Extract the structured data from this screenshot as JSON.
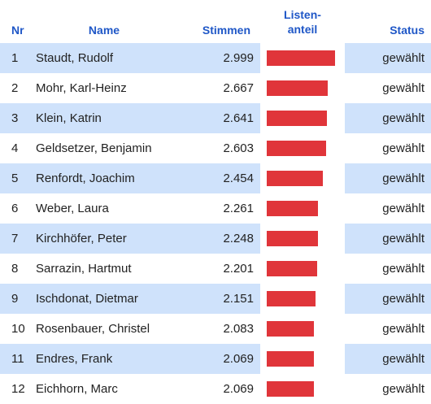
{
  "header": {
    "nr": "Nr",
    "name": "Name",
    "votes": "Stimmen",
    "share_line1": "Listen-",
    "share_line2": "anteil",
    "status": "Status"
  },
  "colors": {
    "header_text": "#1f57c7",
    "row_stripe": "#cfe2fb",
    "bar": "#e0353a"
  },
  "rows": [
    {
      "nr": "1",
      "name": "Staudt, Rudolf",
      "votes": "2.999",
      "share": 2999,
      "status": "gewählt"
    },
    {
      "nr": "2",
      "name": "Mohr, Karl-Heinz",
      "votes": "2.667",
      "share": 2667,
      "status": "gewählt"
    },
    {
      "nr": "3",
      "name": "Klein, Katrin",
      "votes": "2.641",
      "share": 2641,
      "status": "gewählt"
    },
    {
      "nr": "4",
      "name": "Geldsetzer, Benjamin",
      "votes": "2.603",
      "share": 2603,
      "status": "gewählt"
    },
    {
      "nr": "5",
      "name": "Renfordt, Joachim",
      "votes": "2.454",
      "share": 2454,
      "status": "gewählt"
    },
    {
      "nr": "6",
      "name": "Weber, Laura",
      "votes": "2.261",
      "share": 2261,
      "status": "gewählt"
    },
    {
      "nr": "7",
      "name": "Kirchhöfer, Peter",
      "votes": "2.248",
      "share": 2248,
      "status": "gewählt"
    },
    {
      "nr": "8",
      "name": "Sarrazin, Hartmut",
      "votes": "2.201",
      "share": 2201,
      "status": "gewählt"
    },
    {
      "nr": "9",
      "name": "Ischdonat, Dietmar",
      "votes": "2.151",
      "share": 2151,
      "status": "gewählt"
    },
    {
      "nr": "10",
      "name": "Rosenbauer, Christel",
      "votes": "2.083",
      "share": 2083,
      "status": "gewählt"
    },
    {
      "nr": "11",
      "name": "Endres, Frank",
      "votes": "2.069",
      "share": 2069,
      "status": "gewählt"
    },
    {
      "nr": "12",
      "name": "Eichhorn, Marc",
      "votes": "2.069",
      "share": 2069,
      "status": "gewählt"
    }
  ]
}
